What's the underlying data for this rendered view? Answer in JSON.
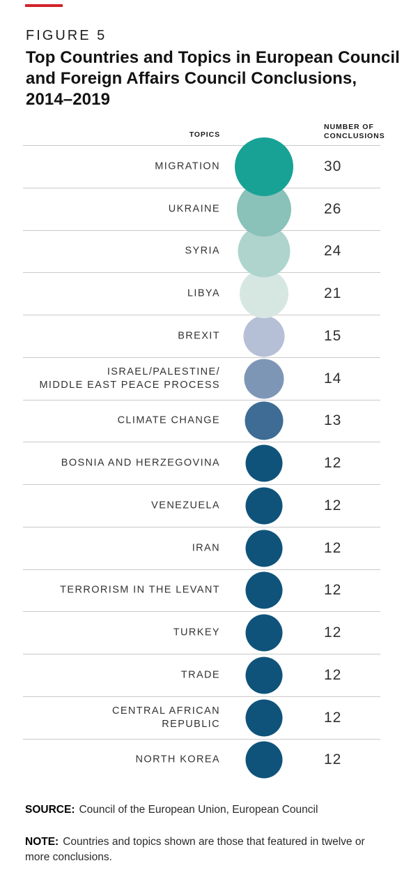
{
  "figure": {
    "kicker": "FIGURE 5",
    "title": "Top Countries and Topics in European Council\nand Foreign Affairs Council Conclusions,\n2014–2019",
    "accent_color": "#d2232a"
  },
  "chart_data": {
    "type": "table",
    "subtype": "proportional-bubble-list",
    "figure_label": "FIGURE 5",
    "title": "Top Countries and Topics in European Council and Foreign Affairs Council Conclusions, 2014–2019",
    "columns": [
      "TOPICS",
      "NUMBER OF CONCLUSIONS"
    ],
    "categories": [
      "MIGRATION",
      "UKRAINE",
      "SYRIA",
      "LIBYA",
      "BREXIT",
      "ISRAEL/PALESTINE/ MIDDLE EAST PEACE PROCESS",
      "CLIMATE CHANGE",
      "BOSNIA AND HERZEGOVINA",
      "VENEZUELA",
      "IRAN",
      "TERRORISM IN THE LEVANT",
      "TURKEY",
      "TRADE",
      "CENTRAL AFRICAN REPUBLIC",
      "NORTH KOREA"
    ],
    "values": [
      30,
      26,
      24,
      21,
      15,
      14,
      13,
      12,
      12,
      12,
      12,
      12,
      12,
      12,
      12
    ],
    "encoding": "circle area proportional to number of conclusions",
    "max_value": 30,
    "max_radius_px": 42,
    "rows": [
      {
        "label": "MIGRATION",
        "value": 30,
        "color": "#18a296"
      },
      {
        "label": "UKRAINE",
        "value": 26,
        "color": "#8ac1b9"
      },
      {
        "label": "SYRIA",
        "value": 24,
        "color": "#afd4cd"
      },
      {
        "label": "LIBYA",
        "value": 21,
        "color": "#d6e7e2"
      },
      {
        "label": "BREXIT",
        "value": 15,
        "color": "#b5c0d7"
      },
      {
        "label": "ISRAEL/PALESTINE/\nMIDDLE EAST PEACE PROCESS",
        "value": 14,
        "color": "#7e96b6"
      },
      {
        "label": "CLIMATE CHANGE",
        "value": 13,
        "color": "#3e6c95"
      },
      {
        "label": "BOSNIA AND HERZEGOVINA",
        "value": 12,
        "color": "#0f537b"
      },
      {
        "label": "VENEZUELA",
        "value": 12,
        "color": "#0f537b"
      },
      {
        "label": "IRAN",
        "value": 12,
        "color": "#0f537b"
      },
      {
        "label": "TERRORISM IN THE LEVANT",
        "value": 12,
        "color": "#0f537b"
      },
      {
        "label": "TURKEY",
        "value": 12,
        "color": "#0f537b"
      },
      {
        "label": "TRADE",
        "value": 12,
        "color": "#0f537b"
      },
      {
        "label": "CENTRAL AFRICAN\nREPUBLIC",
        "value": 12,
        "color": "#0f537b"
      },
      {
        "label": "NORTH KOREA",
        "value": 12,
        "color": "#0f537b"
      }
    ]
  },
  "table_headers": {
    "topics": "TOPICS",
    "number_of_conclusions": "NUMBER OF\nCONCLUSIONS"
  },
  "footer": {
    "source_label": "SOURCE:",
    "source_text": "Council of the European Union, European Council",
    "note_label": "NOTE:",
    "note_text": "Countries and topics shown are those that featured in twelve or more conclusions."
  }
}
